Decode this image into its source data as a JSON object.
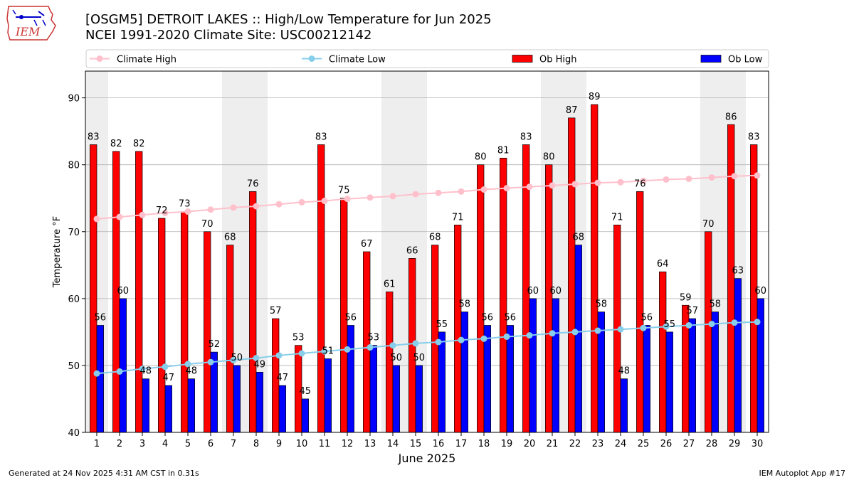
{
  "header": {
    "title_line1": "[OSGM5] DETROIT LAKES :: High/Low Temperature for Jun 2025",
    "title_line2": "NCEI 1991-2020 Climate Site: USC00212142",
    "logo_text": "IEM"
  },
  "footer": {
    "generated": "Generated at 24 Nov 2025 4:31 AM CST in 0.31s",
    "app": "IEM Autoplot App #17"
  },
  "colors": {
    "ob_high": "#ff0000",
    "ob_low": "#0000ff",
    "climate_high": "#ffc0cb",
    "climate_low": "#87ceeb",
    "weekend_band": "#eeeeee",
    "grid": "#b0b0b0"
  },
  "chart_data": {
    "type": "bar",
    "xlabel": "June 2025",
    "ylabel": "Temperature °F",
    "ylim": [
      40,
      94
    ],
    "yticks": [
      40,
      50,
      60,
      70,
      80,
      90
    ],
    "grid": "horizontal",
    "categories": [
      "1",
      "2",
      "3",
      "4",
      "5",
      "6",
      "7",
      "8",
      "9",
      "10",
      "11",
      "12",
      "13",
      "14",
      "15",
      "16",
      "17",
      "18",
      "19",
      "20",
      "21",
      "22",
      "23",
      "24",
      "25",
      "26",
      "27",
      "28",
      "29",
      "30"
    ],
    "weekend_days": [
      1,
      7,
      8,
      14,
      15,
      21,
      22,
      28,
      29
    ],
    "legend": [
      "Climate High",
      "Climate Low",
      "Ob High",
      "Ob Low"
    ],
    "legend_position": "top",
    "series": [
      {
        "name": "Ob High",
        "kind": "bar",
        "values": [
          83,
          82,
          82,
          72,
          73,
          70,
          68,
          76,
          57,
          53,
          83,
          75,
          67,
          61,
          66,
          68,
          71,
          80,
          81,
          83,
          80,
          87,
          89,
          71,
          76,
          64,
          59,
          70,
          86,
          83
        ]
      },
      {
        "name": "Ob Low",
        "kind": "bar",
        "values": [
          56,
          60,
          48,
          47,
          48,
          52,
          50,
          49,
          47,
          45,
          51,
          56,
          53,
          50,
          50,
          55,
          58,
          56,
          56,
          60,
          60,
          68,
          58,
          48,
          56,
          55,
          57,
          58,
          63,
          60
        ]
      },
      {
        "name": "Climate High",
        "kind": "line",
        "values": [
          71.9,
          72.2,
          72.5,
          72.8,
          73.0,
          73.3,
          73.6,
          73.8,
          74.1,
          74.4,
          74.6,
          74.9,
          75.1,
          75.3,
          75.6,
          75.8,
          76.0,
          76.3,
          76.5,
          76.7,
          76.9,
          77.1,
          77.3,
          77.4,
          77.6,
          77.8,
          77.9,
          78.1,
          78.3,
          78.4
        ]
      },
      {
        "name": "Climate Low",
        "kind": "line",
        "values": [
          48.8,
          49.1,
          49.5,
          49.8,
          50.2,
          50.5,
          50.8,
          51.1,
          51.5,
          51.8,
          52.1,
          52.4,
          52.7,
          53.0,
          53.3,
          53.5,
          53.8,
          54.0,
          54.3,
          54.5,
          54.8,
          55.0,
          55.2,
          55.4,
          55.6,
          55.8,
          56.0,
          56.2,
          56.4,
          56.5
        ]
      }
    ]
  }
}
